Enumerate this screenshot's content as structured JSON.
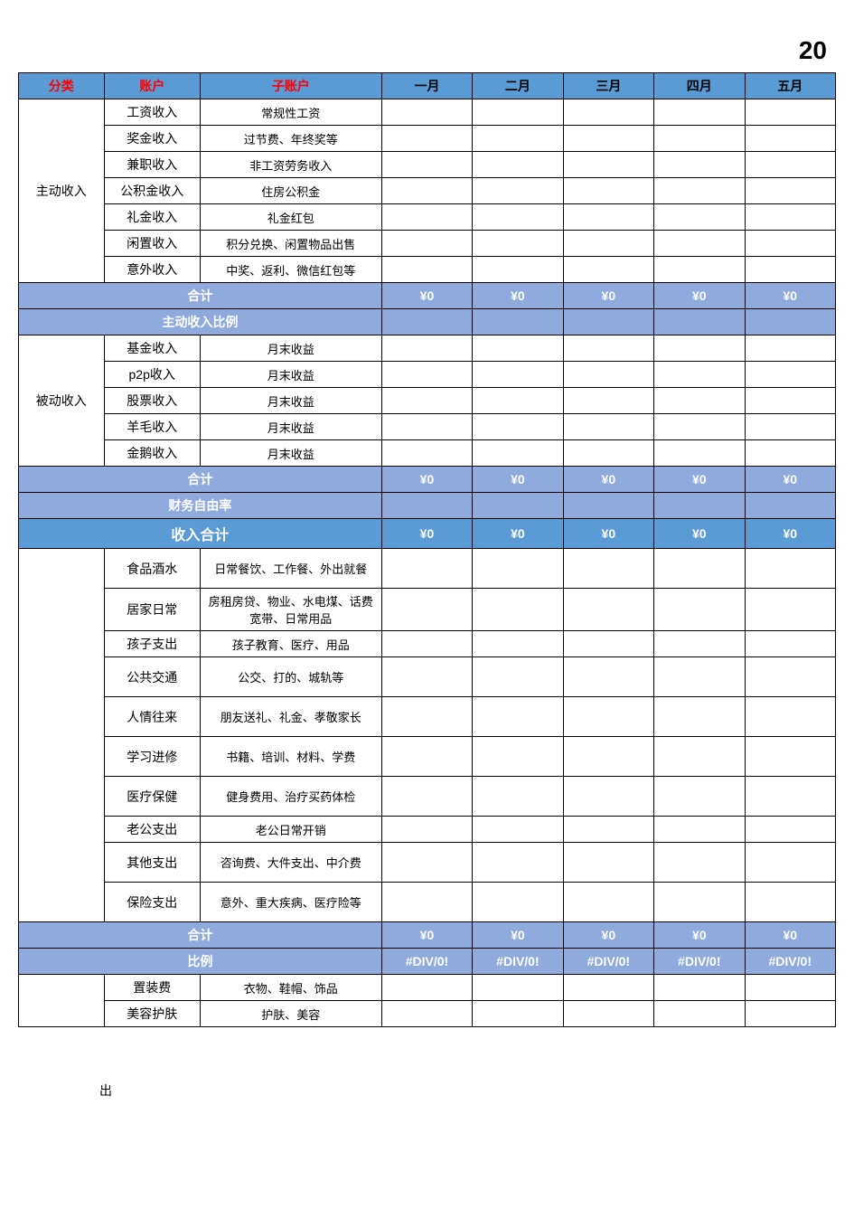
{
  "page": {
    "topRight": "20"
  },
  "header": {
    "cat": "分类",
    "acc": "账户",
    "sub": "子账户",
    "m1": "一月",
    "m2": "二月",
    "m3": "三月",
    "m4": "四月",
    "m5": "五月"
  },
  "colors": {
    "headerBg": "#5b9bd5",
    "sumBg": "#8faadc",
    "bigBg": "#5b9bd5",
    "headerRed": "#ff0000",
    "border": "#000000",
    "white": "#ffffff"
  },
  "activeIncome": {
    "category": "主动收入",
    "rows": [
      {
        "acc": "工资收入",
        "sub": "常规性工资"
      },
      {
        "acc": "奖金收入",
        "sub": "过节费、年终奖等"
      },
      {
        "acc": "兼职收入",
        "sub": "非工资劳务收入"
      },
      {
        "acc": "公积金收入",
        "sub": "住房公积金"
      },
      {
        "acc": "礼金收入",
        "sub": "礼金红包"
      },
      {
        "acc": "闲置收入",
        "sub": "积分兑换、闲置物品出售"
      },
      {
        "acc": "意外收入",
        "sub": "中奖、返利、微信红包等"
      }
    ],
    "sumLabel": "合计",
    "sumVals": [
      "¥0",
      "¥0",
      "¥0",
      "¥0",
      "¥0"
    ],
    "ratioLabel": "主动收入比例",
    "ratioVals": [
      "",
      "",
      "",
      "",
      ""
    ]
  },
  "passiveIncome": {
    "category": "被动收入",
    "rows": [
      {
        "acc": "基金收入",
        "sub": "月末收益"
      },
      {
        "acc": "p2p收入",
        "sub": "月末收益"
      },
      {
        "acc": "股票收入",
        "sub": "月末收益"
      },
      {
        "acc": "羊毛收入",
        "sub": "月末收益"
      },
      {
        "acc": "金鹅收入",
        "sub": "月末收益"
      }
    ],
    "sumLabel": "合计",
    "sumVals": [
      "¥0",
      "¥0",
      "¥0",
      "¥0",
      "¥0"
    ],
    "ratioLabel": "财务自由率",
    "ratioVals": [
      "",
      "",
      "",
      "",
      ""
    ]
  },
  "incomeTotal": {
    "label": "收入合计",
    "vals": [
      "¥0",
      "¥0",
      "¥0",
      "¥0",
      "¥0"
    ]
  },
  "expense1": {
    "rows": [
      {
        "acc": "食品酒水",
        "sub": "日常餐饮、工作餐、外出就餐",
        "tall": true
      },
      {
        "acc": "居家日常",
        "sub": "房租房贷、物业、水电煤、话费宽带、日常用品",
        "tall": true
      },
      {
        "acc": "孩子支出",
        "sub": "孩子教育、医疗、用品"
      },
      {
        "acc": "公共交通",
        "sub": "公交、打的、城轨等",
        "tall": true
      },
      {
        "acc": "人情往来",
        "sub": "朋友送礼、礼金、孝敬家长",
        "tall": true
      },
      {
        "acc": "学习进修",
        "sub": "书籍、培训、材料、学费",
        "tall": true
      },
      {
        "acc": "医疗保健",
        "sub": "健身费用、治疗买药体检",
        "tall": true
      },
      {
        "acc": "老公支出",
        "sub": "老公日常开销"
      },
      {
        "acc": "其他支出",
        "sub": "咨询费、大件支出、中介费",
        "tall": true
      },
      {
        "acc": "保险支出",
        "sub": "意外、重大疾病、医疗险等",
        "tall": true
      }
    ],
    "sumLabel": "合计",
    "sumVals": [
      "¥0",
      "¥0",
      "¥0",
      "¥0",
      "¥0"
    ],
    "ratioLabel": "比例",
    "ratioVals": [
      "#DIV/0!",
      "#DIV/0!",
      "#DIV/0!",
      "#DIV/0!",
      "#DIV/0!"
    ]
  },
  "expense2": {
    "rows": [
      {
        "acc": "置装费",
        "sub": "衣物、鞋帽、饰品"
      },
      {
        "acc": "美容护肤",
        "sub": "护肤、美容"
      }
    ]
  },
  "bottomFrag": "出"
}
